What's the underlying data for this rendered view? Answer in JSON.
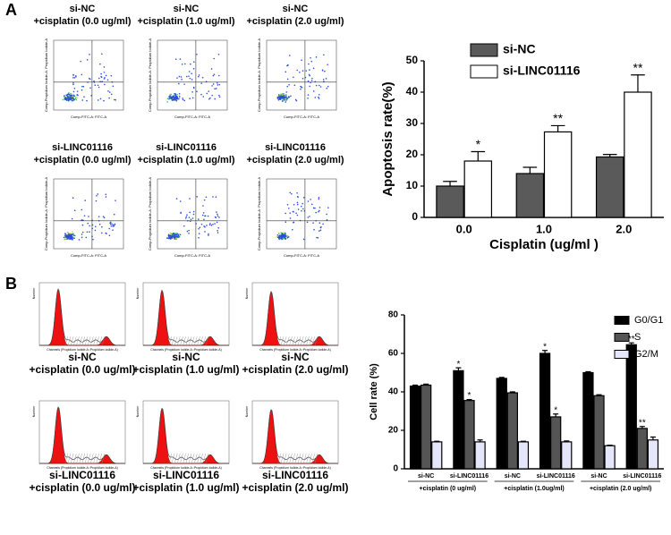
{
  "panel_labels": [
    "A",
    "B"
  ],
  "flow_plots": [
    [
      "si-NC",
      "+cisplatin (0.0 ug/ml)"
    ],
    [
      "si-NC",
      "+cisplatin (1.0 ug/ml)"
    ],
    [
      "si-NC",
      "+cisplatin (2.0 ug/ml)"
    ],
    [
      "si-LINC01116",
      "+cisplatin (0.0 ug/ml)"
    ],
    [
      "si-LINC01116",
      "+cisplatin (1.0 ug/ml)"
    ],
    [
      "si-LINC01116",
      "+cisplatin (2.0 ug/ml)"
    ]
  ],
  "flow_axis_labels": {
    "x": "Comp-FITC-A: FITC-A",
    "y": "Comp-Propidium Iodide-A: Propidium Iodide-A"
  },
  "cycle_plots": [
    [
      "si-NC",
      "+cisplatin (0.0 ug/ml)"
    ],
    [
      "si-NC",
      "+cisplatin (1.0 ug/ml)"
    ],
    [
      "si-NC",
      "+cisplatin (2.0 ug/ml)"
    ],
    [
      "si-LINC01116",
      "+cisplatin (0.0 ug/ml)"
    ],
    [
      "si-LINC01116",
      "+cisplatin (1.0 ug/ml)"
    ],
    [
      "si-LINC01116",
      "+cisplatin (2.0 ug/ml)"
    ]
  ],
  "cycle_axis_labels": {
    "x": "Channels (Propidium Iodide-A::Propidium Iodide-A)",
    "y": "Number"
  },
  "chart_data": [
    {
      "type": "bar",
      "x_label": "Cisplatin (ug/ml )",
      "y_label": "Apoptosis rate(%)",
      "categories": [
        "0.0",
        "1.0",
        "2.0"
      ],
      "series": [
        {
          "name": "si-NC",
          "color": "#5a5a5a",
          "values": [
            10,
            14,
            19.3
          ],
          "errors": [
            1.5,
            2,
            0.8
          ],
          "significance": [
            null,
            null,
            null
          ]
        },
        {
          "name": "si-LINC01116",
          "color": "#ffffff",
          "values": [
            18,
            27.3,
            40
          ],
          "errors": [
            3,
            2,
            5.5
          ],
          "significance": [
            "*",
            "**",
            "**"
          ]
        }
      ],
      "ylim": [
        0,
        50
      ],
      "yticks": [
        0,
        10,
        20,
        30,
        40,
        50
      ],
      "grid": false,
      "legend": "top-left"
    },
    {
      "type": "bar",
      "y_label": "Cell rate (%)",
      "categories": [
        "si-NC",
        "si-LINC01116",
        "si-NC",
        "si-LINC01116",
        "si-NC",
        "si-LINC01116"
      ],
      "groups": [
        "+cisplatin (0 ug/ml)",
        "+cisplatin (1.0ug/ml)",
        "+cisplatin (2.0 ug/ml)"
      ],
      "series": [
        {
          "name": "G0/G1",
          "color": "#000000",
          "values": [
            43,
            51,
            47,
            60,
            50,
            64.5
          ],
          "errors": [
            0.5,
            1.5,
            0.5,
            1.5,
            0.5,
            1
          ],
          "significance": [
            null,
            "*",
            null,
            "*",
            null,
            "**"
          ]
        },
        {
          "name": "S",
          "color": "#555555",
          "values": [
            43.5,
            35.5,
            39.5,
            27,
            38,
            21
          ],
          "errors": [
            0.5,
            0.5,
            0.5,
            1.5,
            0.5,
            1
          ],
          "significance": [
            null,
            "*",
            null,
            "*",
            null,
            "**"
          ]
        },
        {
          "name": "G2/M",
          "color": "#e6e6fa",
          "values": [
            14,
            14,
            14,
            14,
            12,
            15
          ],
          "errors": [
            0.3,
            1,
            0.3,
            0.5,
            0.3,
            1.5
          ],
          "significance": [
            null,
            null,
            null,
            null,
            null,
            null
          ]
        }
      ],
      "ylim": [
        0,
        80
      ],
      "yticks": [
        0,
        20,
        40,
        60,
        80
      ],
      "grid": false,
      "legend": "top-right"
    }
  ]
}
